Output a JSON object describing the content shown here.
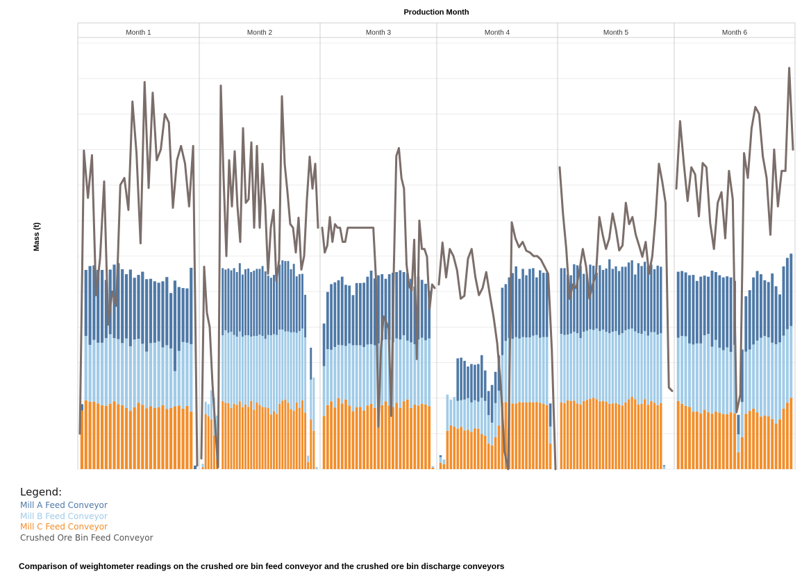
{
  "chart_data": {
    "type": "bar",
    "stacked": true,
    "title": "Production Month",
    "subtitle": "",
    "ylabel": "Mass (t)",
    "xlabel": "",
    "categories": [
      "Month 1",
      "Month 2",
      "Month 3",
      "Month 4",
      "Month 5",
      "Month 6"
    ],
    "ylim": [
      0,
      12
    ],
    "grid": true,
    "legend_position": "bottom-left",
    "series": [
      {
        "name": "Mill C Feed Conveyor",
        "kind": "bar",
        "color": "#F28E2B",
        "values": [
          [
            1.65,
            1.94,
            1.9,
            1.9,
            1.85,
            1.8,
            1.78,
            1.84,
            1.91,
            1.83,
            1.8,
            1.72,
            1.64,
            1.74,
            1.87,
            1.81,
            1.71,
            1.77,
            1.72,
            1.74,
            1.8,
            1.69,
            1.72,
            1.77,
            1.79,
            1.7,
            1.78,
            1.62,
            0.0
          ],
          [
            0.05,
            1.55,
            1.49,
            1.4,
            0.95,
            0.3,
            0.0,
            1.92,
            1.87,
            1.86,
            1.72,
            1.84,
            1.81,
            1.91,
            1.74,
            1.82,
            1.75,
            1.92,
            1.67,
            1.88,
            1.81,
            1.75,
            1.74,
            1.72,
            1.54,
            1.63,
            1.55,
            1.84,
            1.93,
            1.96,
            1.87,
            1.69,
            1.64,
            1.88,
            1.72,
            1.94,
            1.59,
            0.2,
            1.4,
            1.08,
            0.0
          ],
          [
            1.5,
            1.8,
            1.91,
            1.73,
            2.0,
            1.85,
            1.96,
            1.79,
            1.63,
            1.74,
            1.75,
            1.65,
            1.79,
            1.84,
            1.72,
            1.82,
            1.8,
            1.91,
            1.79,
            1.75,
            1.87,
            1.72,
            1.91,
            1.96,
            1.72,
            1.82,
            1.79,
            1.84,
            1.82,
            1.77,
            0.04
          ],
          [
            0.18,
            0.14,
            1.08,
            1.23,
            1.2,
            1.14,
            1.19,
            1.09,
            1.11,
            1.05,
            1.15,
            1.14,
            0.99,
            0.94,
            0.72,
            0.67,
            0.9,
            1.23,
            1.88,
            1.89,
            1.87,
            1.85,
            1.85,
            1.89,
            1.88,
            1.88,
            1.89,
            1.88,
            1.89,
            1.87,
            1.84,
            1.8,
            0.72,
            0.0
          ],
          [
            1.88,
            1.86,
            1.94,
            1.92,
            1.93,
            1.85,
            1.82,
            1.92,
            1.95,
            1.98,
            2.01,
            1.97,
            1.91,
            1.92,
            1.9,
            1.84,
            1.85,
            1.86,
            1.82,
            1.79,
            1.88,
            1.97,
            2.04,
            1.97,
            1.82,
            1.84,
            1.97,
            1.81,
            1.92,
            1.87,
            1.8,
            1.86,
            0.0,
            0.0,
            0.0
          ],
          [
            1.92,
            1.84,
            1.78,
            1.75,
            1.62,
            1.62,
            1.57,
            1.67,
            1.6,
            1.56,
            1.62,
            1.59,
            1.55,
            1.55,
            1.6,
            1.57,
            0.47,
            0.9,
            1.56,
            1.64,
            1.7,
            1.6,
            1.48,
            1.51,
            1.49,
            1.41,
            1.28,
            1.4,
            1.7,
            1.87,
            2.01
          ]
        ]
      },
      {
        "name": "Mill B Feed Conveyor",
        "kind": "bar",
        "color": "#A0CBE8",
        "values": [
          [
            0.0,
            1.81,
            1.6,
            1.74,
            1.71,
            1.76,
            1.91,
            1.96,
            1.78,
            1.83,
            1.75,
            1.96,
            1.82,
            1.91,
            1.8,
            1.72,
            1.6,
            1.78,
            1.84,
            1.86,
            1.63,
            1.8,
            1.68,
            0.99,
            1.54,
            1.88,
            1.78,
            1.9,
            0.0
          ],
          [
            0.1,
            0.35,
            0.34,
            0.82,
            1.06,
            1.21,
            0.0,
            1.85,
            2.04,
            1.98,
            2.15,
            1.94,
            1.92,
            1.97,
            1.99,
            1.95,
            2.02,
            1.81,
            2.08,
            1.87,
            1.98,
            2.0,
            1.93,
            2.06,
            2.23,
            2.17,
            2.23,
            2.09,
            2.0,
            1.92,
            2.01,
            2.16,
            2.22,
            1.96,
            2.17,
            2.02,
            2.12,
            0.18,
            1.12,
            1.5,
            0.06
          ],
          [
            1.4,
            1.58,
            1.45,
            1.71,
            1.5,
            1.64,
            1.51,
            1.75,
            1.86,
            1.75,
            1.74,
            1.79,
            1.72,
            1.68,
            1.77,
            1.72,
            1.83,
            1.74,
            1.85,
            1.82,
            1.81,
            1.93,
            1.86,
            1.66,
            1.85,
            1.7,
            1.86,
            1.86,
            1.81,
            1.91,
            0.04
          ],
          [
            0.16,
            0.13,
            1.02,
            0.73,
            0.83,
            0.78,
            0.75,
            0.87,
            0.89,
            0.83,
            0.79,
            0.76,
            1.02,
            0.98,
            0.8,
            0.64,
            0.96,
            0.98,
            1.33,
            1.72,
            1.82,
            1.82,
            1.87,
            1.79,
            1.84,
            1.83,
            1.82,
            1.88,
            1.89,
            1.83,
            1.88,
            1.92,
            0.48,
            0.0
          ],
          [
            1.93,
            1.92,
            1.85,
            1.9,
            1.94,
            1.98,
            1.87,
            1.95,
            1.95,
            1.96,
            1.91,
            1.99,
            1.98,
            2.01,
            1.97,
            1.99,
            2.02,
            2.03,
            1.96,
            2.04,
            2.03,
            1.97,
            1.92,
            1.91,
            2.01,
            1.97,
            1.92,
            1.95,
            1.94,
            1.99,
            1.99,
            1.97,
            0.08,
            0.0,
            0.0
          ],
          [
            1.78,
            1.91,
            1.96,
            1.79,
            1.89,
            1.92,
            1.97,
            2.1,
            2.21,
            1.89,
            2.02,
            1.83,
            1.8,
            1.88,
            1.7,
            1.93,
            0.51,
            0.99,
            1.75,
            1.73,
            1.81,
            2.02,
            2.22,
            2.24,
            2.22,
            2.15,
            2.24,
            2.17,
            2.06,
            2.07,
            2.02
          ]
        ]
      },
      {
        "name": "Mill A Feed Conveyor",
        "kind": "bar",
        "color": "#4E79A7",
        "values": [
          [
            0.18,
            1.86,
            2.22,
            2.1,
            2.05,
            2.05,
            1.64,
            1.82,
            2.07,
            2.14,
            2.08,
            1.81,
            2.16,
            1.74,
            1.8,
            2.03,
            2.04,
            1.81,
            1.73,
            1.65,
            1.86,
            1.92,
            1.56,
            2.55,
            1.8,
            1.52,
            1.53,
            2.15,
            0.1
          ],
          [
            0.0,
            0.0,
            0.0,
            0.0,
            0.0,
            0.0,
            0.0,
            1.89,
            1.71,
            1.81,
            1.73,
            1.88,
            1.82,
            1.92,
            1.75,
            1.86,
            1.88,
            1.82,
            1.84,
            1.89,
            1.85,
            1.97,
            1.9,
            1.67,
            1.62,
            1.67,
            1.65,
            1.83,
            1.95,
            1.98,
            1.98,
            1.78,
            1.92,
            1.59,
            1.6,
            1.54,
            1.2,
            0.0,
            0.9,
            0.0,
            0.0
          ],
          [
            1.2,
            1.61,
            1.85,
            1.82,
            1.82,
            1.93,
            1.72,
            1.63,
            1.41,
            1.75,
            1.75,
            1.81,
            1.91,
            2.07,
            1.88,
            1.92,
            1.86,
            1.71,
            1.85,
            1.96,
            1.87,
            1.95,
            1.78,
            1.9,
            1.79,
            1.62,
            1.77,
            1.63,
            1.59,
            1.34,
            0.0
          ],
          [
            0.05,
            0.0,
            0.0,
            0.0,
            0.0,
            1.2,
            1.2,
            1.09,
            0.89,
            1.08,
            1.0,
            1.06,
            1.2,
            0.86,
            0.68,
            1.06,
            0.88,
            0.99,
            1.9,
            1.6,
            1.71,
            1.85,
            1.99,
            1.68,
            1.92,
            1.75,
            1.93,
            1.9,
            1.62,
            1.9,
            1.81,
            1.81,
            0.65,
            0.0
          ],
          [
            1.85,
            1.88,
            1.69,
            1.64,
            1.9,
            1.91,
            2.03,
            1.63,
            1.57,
            1.82,
            1.81,
            1.57,
            1.85,
            1.68,
            1.78,
            2.08,
            1.77,
            1.82,
            1.8,
            1.87,
            1.79,
            1.88,
            1.92,
            1.6,
            1.97,
            1.91,
            1.95,
            1.96,
            1.9,
            1.77,
            1.94,
            1.87,
            0.03,
            0.0,
            0.0
          ],
          [
            1.86,
            1.83,
            1.8,
            1.92,
            1.96,
            1.76,
            1.88,
            1.68,
            1.61,
            2.14,
            1.91,
            2.04,
            2.05,
            2.0,
            2.1,
            1.8,
            0.55,
            1.48,
            1.56,
            1.67,
            1.89,
            1.96,
            1.79,
            1.57,
            1.56,
            1.95,
            1.63,
            1.35,
            1.95,
            2.01,
            2.04
          ]
        ]
      },
      {
        "name": "Crushed Ore Bin Feed Conveyor",
        "kind": "line",
        "color": "#7B6E6A",
        "values": [
          [
            1.0,
            8.97,
            7.64,
            8.84,
            4.9,
            5.94,
            8.1,
            4.07,
            5.0,
            4.6,
            8.0,
            8.2,
            7.3,
            10.35,
            8.9,
            6.36,
            10.9,
            7.92,
            10.6,
            8.7,
            9.0,
            10.0,
            9.76,
            7.36,
            8.7,
            9.1,
            8.6,
            7.4,
            9.1,
            0.1
          ],
          [
            0.3,
            5.7,
            4.4,
            4.0,
            2.4,
            1.2,
            0.05,
            10.8,
            8.2,
            6.0,
            8.7,
            7.4,
            8.95,
            7.4,
            6.4,
            9.6,
            7.5,
            7.6,
            9.2,
            6.8,
            9.1,
            6.8,
            8.6,
            7.4,
            5.5,
            6.8,
            7.3,
            5.3,
            5.9,
            10.5,
            8.6,
            7.8,
            6.9,
            6.8,
            6.1,
            7.08,
            5.62,
            6.0,
            7.6,
            8.8,
            7.9,
            8.6,
            6.8
          ],
          [
            6.8,
            6.1,
            6.3,
            7.1,
            6.4,
            6.9,
            6.8,
            6.8,
            6.4,
            6.4,
            6.8,
            6.8,
            6.8,
            6.8,
            6.8,
            6.8,
            6.8,
            6.8,
            6.8,
            6.8,
            6.8,
            5.42,
            1.2,
            3.4,
            4.3,
            4.15,
            3.95,
            1.5,
            5.56,
            8.82,
            9.04,
            8.2,
            7.9,
            5.76,
            5.16,
            5.03,
            6.46,
            3.1,
            7.0,
            6.2,
            6.2,
            5.98,
            4.5,
            5.2,
            5.1
          ],
          [
            5.2,
            6.38,
            5.4,
            6.2,
            6.0,
            5.6,
            4.8,
            4.88,
            5.93,
            6.2,
            5.42,
            4.9,
            5.1,
            5.55,
            4.9,
            4.3,
            3.55,
            2.35,
            0.5,
            0.0,
            6.95,
            6.5,
            6.25,
            6.4,
            6.15,
            6.1,
            6.0,
            6.0,
            5.9,
            5.7,
            5.5,
            3.34,
            0.0
          ],
          [
            8.5,
            7.2,
            6.2,
            4.8,
            5.2,
            5.1,
            5.6,
            6.2,
            5.7,
            4.8,
            5.2,
            5.5,
            7.1,
            6.6,
            6.2,
            6.5,
            7.2,
            6.75,
            6.16,
            6.3,
            7.5,
            6.9,
            7.1,
            6.6,
            6.3,
            5.98,
            6.4,
            5.5,
            6.0,
            7.1,
            8.6,
            8.1,
            7.5,
            2.3,
            2.2
          ],
          [
            7.9,
            9.8,
            8.6,
            7.55,
            8.5,
            8.3,
            7.12,
            8.62,
            8.5,
            6.93,
            6.2,
            7.5,
            7.8,
            6.5,
            8.4,
            7.6,
            1.6,
            2.1,
            8.9,
            8.2,
            9.6,
            10.2,
            10.0,
            8.8,
            8.2,
            6.6,
            9.0,
            7.4,
            8.4,
            8.4,
            11.3,
            9.0
          ]
        ]
      }
    ]
  },
  "header": {
    "top_title": "Production Month",
    "y_axis_label": "Mass (t)"
  },
  "legend": {
    "title": "Legend:",
    "items": [
      {
        "label": "Mill A Feed Conveyor",
        "color": "#4E79A7"
      },
      {
        "label": "Mill B Feed Conveyor",
        "color": "#A0CBE8"
      },
      {
        "label": "Mill C Feed Conveyor",
        "color": "#F28E2B"
      },
      {
        "label": "Crushed Ore Bin Feed Conveyor",
        "color": "#555555"
      }
    ]
  },
  "caption": "Comparison of weightometer readings on the crushed ore bin feed conveyor and the crushed ore bin discharge conveyors"
}
